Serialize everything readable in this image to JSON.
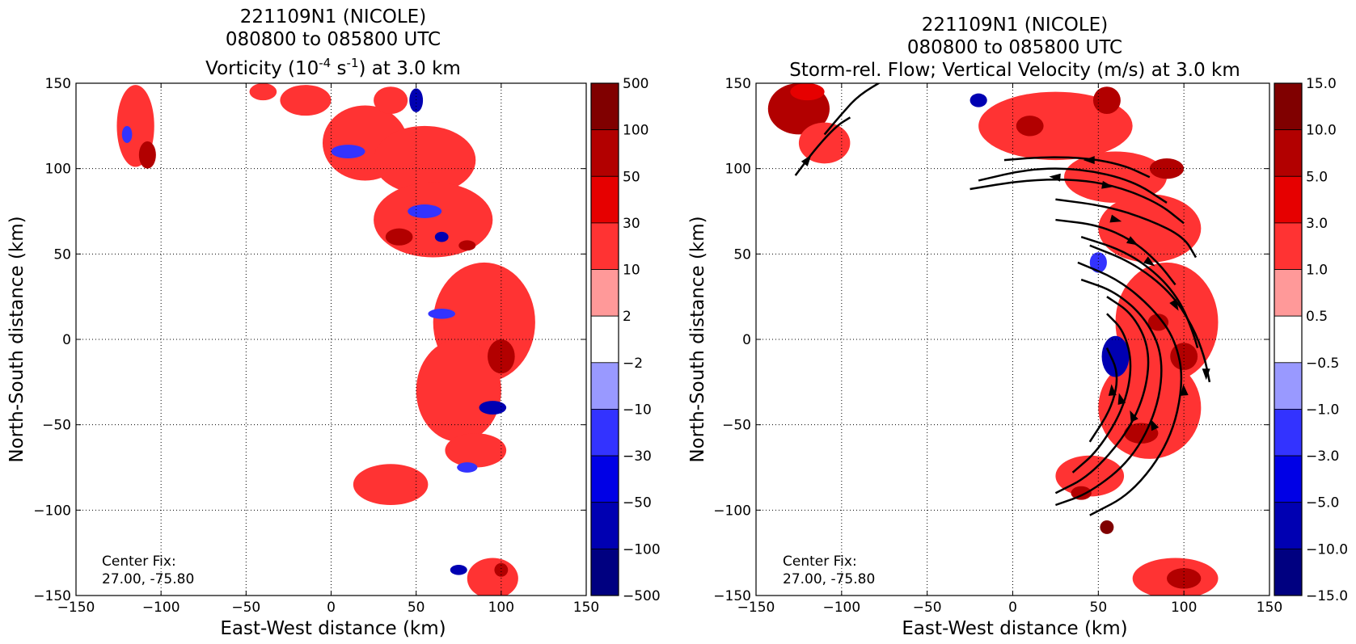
{
  "chart_data": [
    {
      "type": "heatmap",
      "title_lines": [
        "221109N1 (NICOLE)",
        "080800 to 085800 UTC"
      ],
      "title_line3_pre": "Vorticity (10",
      "title_line3_sup1": "-4",
      "title_line3_mid": " s",
      "title_line3_sup2": "-1",
      "title_line3_post": ") at 3.0 km",
      "xlabel": "East-West distance (km)",
      "ylabel": "North-South distance (km)",
      "xlim": [
        -150,
        150
      ],
      "ylim": [
        -150,
        150
      ],
      "xticks": [
        "−150",
        "−100",
        "−50",
        "0",
        "50",
        "100",
        "150"
      ],
      "yticks": [
        "150",
        "100",
        "50",
        "0",
        "−50",
        "−100",
        "−150"
      ],
      "grid": true,
      "annotation_line1": "Center Fix:",
      "annotation_line2": "27.00, -75.80",
      "colorbar_levels": [
        "500",
        "100",
        "50",
        "30",
        "10",
        "2",
        "−2",
        "−10",
        "−30",
        "−50",
        "−100",
        "−500"
      ],
      "colorbar_colors": [
        "#800000",
        "#b20000",
        "#e60000",
        "#ff3333",
        "#ff9999",
        "#ffffff",
        "#9999ff",
        "#3333ff",
        "#0000e6",
        "#0000b2",
        "#000080"
      ],
      "blobs": [
        {
          "x": -115,
          "y": 125,
          "rx": 11,
          "ry": 24,
          "c": 2
        },
        {
          "x": -108,
          "y": 108,
          "rx": 5,
          "ry": 8,
          "c": 4
        },
        {
          "x": -120,
          "y": 120,
          "rx": 3,
          "ry": 5,
          "c": -2
        },
        {
          "x": -15,
          "y": 140,
          "rx": 15,
          "ry": 9,
          "c": 2
        },
        {
          "x": -40,
          "y": 145,
          "rx": 8,
          "ry": 5,
          "c": 2
        },
        {
          "x": 20,
          "y": 115,
          "rx": 25,
          "ry": 22,
          "c": 2
        },
        {
          "x": 55,
          "y": 105,
          "rx": 30,
          "ry": 20,
          "c": 2
        },
        {
          "x": 35,
          "y": 140,
          "rx": 10,
          "ry": 8,
          "c": 2
        },
        {
          "x": 50,
          "y": 140,
          "rx": 4,
          "ry": 7,
          "c": -4
        },
        {
          "x": 10,
          "y": 110,
          "rx": 10,
          "ry": 4,
          "c": -2
        },
        {
          "x": 60,
          "y": 70,
          "rx": 35,
          "ry": 22,
          "c": 2
        },
        {
          "x": 40,
          "y": 60,
          "rx": 8,
          "ry": 5,
          "c": 4
        },
        {
          "x": 55,
          "y": 75,
          "rx": 10,
          "ry": 4,
          "c": -2
        },
        {
          "x": 65,
          "y": 60,
          "rx": 4,
          "ry": 3,
          "c": -4
        },
        {
          "x": 80,
          "y": 55,
          "rx": 5,
          "ry": 3,
          "c": 4
        },
        {
          "x": 90,
          "y": 10,
          "rx": 30,
          "ry": 35,
          "c": 2
        },
        {
          "x": 75,
          "y": -30,
          "rx": 25,
          "ry": 30,
          "c": 2
        },
        {
          "x": 100,
          "y": -10,
          "rx": 8,
          "ry": 10,
          "c": 4
        },
        {
          "x": 65,
          "y": 15,
          "rx": 8,
          "ry": 3,
          "c": -2
        },
        {
          "x": 95,
          "y": -40,
          "rx": 8,
          "ry": 4,
          "c": -4
        },
        {
          "x": 85,
          "y": -65,
          "rx": 18,
          "ry": 10,
          "c": 2
        },
        {
          "x": 35,
          "y": -85,
          "rx": 22,
          "ry": 12,
          "c": 2
        },
        {
          "x": 80,
          "y": -75,
          "rx": 6,
          "ry": 3,
          "c": -2
        },
        {
          "x": 95,
          "y": -140,
          "rx": 15,
          "ry": 12,
          "c": 2
        },
        {
          "x": 75,
          "y": -135,
          "rx": 5,
          "ry": 3,
          "c": -4
        },
        {
          "x": 100,
          "y": -135,
          "rx": 4,
          "ry": 4,
          "c": 4
        }
      ]
    },
    {
      "type": "heatmap",
      "title_lines": [
        "221109N1 (NICOLE)",
        "080800 to 085800 UTC",
        "Storm-rel. Flow; Vertical Velocity (m/s) at 3.0 km"
      ],
      "xlabel": "East-West distance (km)",
      "ylabel": "North-South distance (km)",
      "xlim": [
        -150,
        150
      ],
      "ylim": [
        -150,
        150
      ],
      "xticks": [
        "−150",
        "−100",
        "−50",
        "0",
        "50",
        "100",
        "150"
      ],
      "yticks": [
        "150",
        "100",
        "50",
        "0",
        "−50",
        "−100",
        "−150"
      ],
      "grid": true,
      "annotation_line1": "Center Fix:",
      "annotation_line2": "27.00, -75.80",
      "colorbar_levels": [
        "15.0",
        "10.0",
        "5.0",
        "3.0",
        "1.0",
        "0.5",
        "−0.5",
        "−1.0",
        "−3.0",
        "−5.0",
        "−10.0",
        "−15.0"
      ],
      "colorbar_colors": [
        "#800000",
        "#b20000",
        "#e60000",
        "#ff3333",
        "#ff9999",
        "#ffffff",
        "#9999ff",
        "#3333ff",
        "#0000e6",
        "#0000b2",
        "#000080"
      ],
      "blobs": [
        {
          "x": -125,
          "y": 135,
          "rx": 18,
          "ry": 15,
          "c": 4
        },
        {
          "x": -110,
          "y": 115,
          "rx": 15,
          "ry": 12,
          "c": 2
        },
        {
          "x": -120,
          "y": 145,
          "rx": 10,
          "ry": 5,
          "c": 3
        },
        {
          "x": 25,
          "y": 125,
          "rx": 45,
          "ry": 20,
          "c": 2
        },
        {
          "x": 10,
          "y": 125,
          "rx": 8,
          "ry": 6,
          "c": 4
        },
        {
          "x": -20,
          "y": 140,
          "rx": 5,
          "ry": 4,
          "c": -4
        },
        {
          "x": 55,
          "y": 140,
          "rx": 8,
          "ry": 8,
          "c": 4
        },
        {
          "x": 60,
          "y": 95,
          "rx": 30,
          "ry": 15,
          "c": 2
        },
        {
          "x": 80,
          "y": 65,
          "rx": 30,
          "ry": 20,
          "c": 2
        },
        {
          "x": 50,
          "y": 45,
          "rx": 5,
          "ry": 6,
          "c": -2
        },
        {
          "x": 90,
          "y": 100,
          "rx": 10,
          "ry": 6,
          "c": 4
        },
        {
          "x": 90,
          "y": 10,
          "rx": 30,
          "ry": 35,
          "c": 2
        },
        {
          "x": 80,
          "y": -40,
          "rx": 30,
          "ry": 30,
          "c": 2
        },
        {
          "x": 60,
          "y": -10,
          "rx": 8,
          "ry": 12,
          "c": -4
        },
        {
          "x": 100,
          "y": -10,
          "rx": 8,
          "ry": 8,
          "c": 4
        },
        {
          "x": 85,
          "y": 10,
          "rx": 6,
          "ry": 5,
          "c": 4
        },
        {
          "x": 75,
          "y": -55,
          "rx": 10,
          "ry": 6,
          "c": 4
        },
        {
          "x": 45,
          "y": -80,
          "rx": 20,
          "ry": 12,
          "c": 2
        },
        {
          "x": 40,
          "y": -90,
          "rx": 6,
          "ry": 4,
          "c": 4
        },
        {
          "x": 95,
          "y": -140,
          "rx": 25,
          "ry": 12,
          "c": 2
        },
        {
          "x": 100,
          "y": -140,
          "rx": 10,
          "ry": 6,
          "c": 4
        },
        {
          "x": 55,
          "y": -110,
          "rx": 4,
          "ry": 4,
          "c": 5
        }
      ],
      "streamlines": [
        [
          [
            -127,
            96
          ],
          [
            -115,
            112
          ],
          [
            -103,
            125
          ],
          [
            -95,
            130
          ]
        ],
        [
          [
            -110,
            120
          ],
          [
            -100,
            132
          ],
          [
            -90,
            143
          ],
          [
            -75,
            152
          ]
        ],
        [
          [
            -5,
            105
          ],
          [
            20,
            107
          ],
          [
            45,
            106
          ],
          [
            65,
            102
          ],
          [
            80,
            95
          ]
        ],
        [
          [
            -20,
            93
          ],
          [
            10,
            100
          ],
          [
            40,
            100
          ],
          [
            70,
            93
          ],
          [
            90,
            80
          ]
        ],
        [
          [
            -25,
            88
          ],
          [
            5,
            93
          ],
          [
            35,
            94
          ],
          [
            60,
            90
          ],
          [
            85,
            80
          ],
          [
            100,
            68
          ]
        ],
        [
          [
            25,
            82
          ],
          [
            55,
            78
          ],
          [
            80,
            70
          ],
          [
            100,
            60
          ],
          [
            107,
            48
          ]
        ],
        [
          [
            25,
            70
          ],
          [
            50,
            67
          ],
          [
            70,
            58
          ],
          [
            85,
            45
          ],
          [
            95,
            32
          ]
        ],
        [
          [
            40,
            60
          ],
          [
            65,
            52
          ],
          [
            85,
            38
          ],
          [
            98,
            22
          ],
          [
            105,
            5
          ],
          [
            108,
            -5
          ]
        ],
        [
          [
            45,
            55
          ],
          [
            70,
            45
          ],
          [
            92,
            28
          ],
          [
            105,
            8
          ],
          [
            112,
            -10
          ],
          [
            115,
            -25
          ]
        ],
        [
          [
            38,
            45
          ],
          [
            62,
            35
          ],
          [
            82,
            18
          ],
          [
            95,
            0
          ],
          [
            100,
            -25
          ],
          [
            92,
            -60
          ],
          [
            70,
            -90
          ],
          [
            45,
            -103
          ]
        ],
        [
          [
            40,
            35
          ],
          [
            60,
            28
          ],
          [
            78,
            12
          ],
          [
            88,
            -10
          ],
          [
            85,
            -40
          ],
          [
            70,
            -70
          ],
          [
            45,
            -90
          ],
          [
            25,
            -97
          ]
        ],
        [
          [
            55,
            25
          ],
          [
            70,
            15
          ],
          [
            80,
            -5
          ],
          [
            78,
            -30
          ],
          [
            67,
            -55
          ],
          [
            45,
            -80
          ],
          [
            25,
            -90
          ]
        ],
        [
          [
            55,
            15
          ],
          [
            65,
            5
          ],
          [
            70,
            -15
          ],
          [
            65,
            -40
          ],
          [
            50,
            -65
          ],
          [
            35,
            -78
          ]
        ],
        [
          [
            55,
            -5
          ],
          [
            62,
            -20
          ],
          [
            58,
            -40
          ],
          [
            45,
            -60
          ]
        ]
      ],
      "arrows": [
        {
          "x": -120,
          "y": 105,
          "a": 52
        },
        {
          "x": 45,
          "y": 105,
          "a": 180
        },
        {
          "x": 55,
          "y": 90,
          "a": -10
        },
        {
          "x": 25,
          "y": 95,
          "a": 175
        },
        {
          "x": 60,
          "y": 70,
          "a": -15
        },
        {
          "x": 70,
          "y": 57,
          "a": -30
        },
        {
          "x": 80,
          "y": 45,
          "a": -35
        },
        {
          "x": 95,
          "y": 20,
          "a": -60
        },
        {
          "x": 113,
          "y": -20,
          "a": -90
        },
        {
          "x": 100,
          "y": -30,
          "a": 95
        },
        {
          "x": 82,
          "y": -50,
          "a": 115
        },
        {
          "x": 70,
          "y": -45,
          "a": 115
        },
        {
          "x": 63,
          "y": -35,
          "a": 105
        },
        {
          "x": 58,
          "y": -30,
          "a": 95
        }
      ]
    }
  ]
}
